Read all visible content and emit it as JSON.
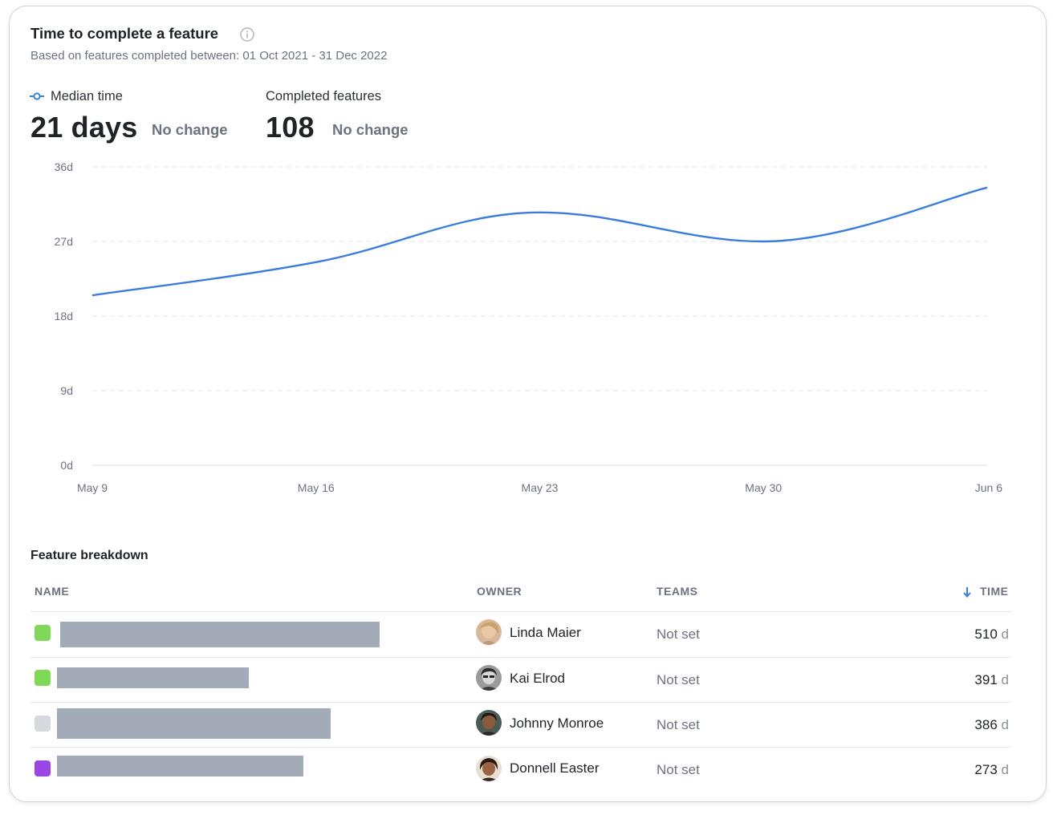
{
  "header": {
    "title": "Time to complete a feature",
    "subtitle": "Based on features completed between: 01 Oct 2021 - 31 Dec 2022",
    "info_icon": "info-icon"
  },
  "metrics": {
    "median": {
      "label": "Median time",
      "value": "21 days",
      "change": "No change",
      "legend_color": "#3b7ddd"
    },
    "completed": {
      "label": "Completed features",
      "value": "108",
      "change": "No change"
    }
  },
  "chart_data": {
    "type": "line",
    "x": [
      "May 9",
      "May 16",
      "May 23",
      "May 30",
      "Jun 6"
    ],
    "y_ticks": [
      "36d",
      "27d",
      "18d",
      "9d",
      "0d"
    ],
    "ylim": [
      0,
      36
    ],
    "grid": true,
    "series": [
      {
        "name": "Median time",
        "color": "#3b7ddd",
        "values": [
          20.5,
          24.5,
          30.5,
          27,
          33.5
        ]
      }
    ]
  },
  "breakdown": {
    "title": "Feature breakdown",
    "columns": {
      "name": "NAME",
      "owner": "OWNER",
      "teams": "TEAMS",
      "time": "TIME"
    },
    "rows": [
      {
        "status_color": "#7ed957",
        "owner": "Linda Maier",
        "teams": "Not set",
        "time_value": "510",
        "time_unit": "d"
      },
      {
        "status_color": "#7ed957",
        "owner": "Kai Elrod",
        "teams": "Not set",
        "time_value": "391",
        "time_unit": "d"
      },
      {
        "status_color": "#d6d9de",
        "owner": "Johnny Monroe",
        "teams": "Not set",
        "time_value": "386",
        "time_unit": "d"
      },
      {
        "status_color": "#9b45e4",
        "owner": "Donnell Easter",
        "teams": "Not set",
        "time_value": "273",
        "time_unit": "d"
      }
    ]
  }
}
